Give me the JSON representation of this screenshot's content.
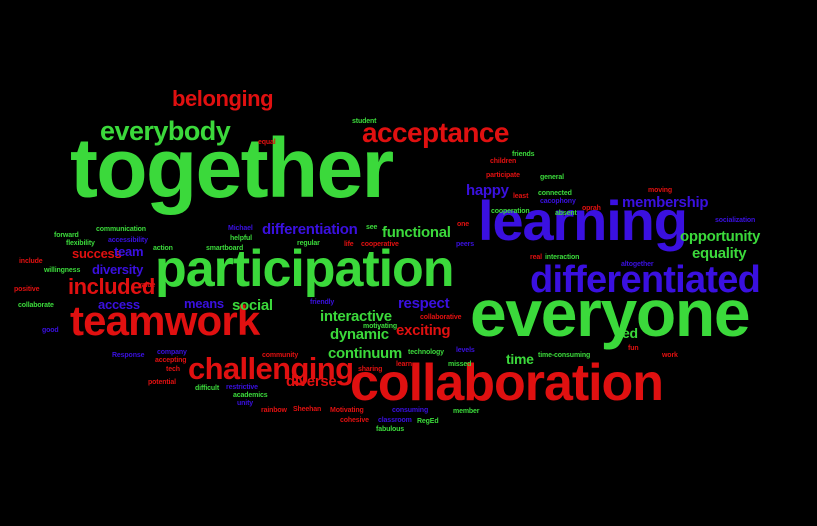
{
  "colors": {
    "background": "#000000",
    "green": "#3bd93b",
    "red": "#e01010",
    "blue": "#3a10e0"
  },
  "words": [
    {
      "text": "together",
      "color": "green"
    },
    {
      "text": "everyone",
      "color": "green"
    },
    {
      "text": "participation",
      "color": "green"
    },
    {
      "text": "collaboration",
      "color": "red"
    },
    {
      "text": "learning",
      "color": "blue"
    },
    {
      "text": "teamwork",
      "color": "red"
    },
    {
      "text": "differentiated",
      "color": "blue"
    },
    {
      "text": "acceptance",
      "color": "red"
    },
    {
      "text": "everybody",
      "color": "green"
    },
    {
      "text": "challenging",
      "color": "red"
    },
    {
      "text": "belonging",
      "color": "red"
    },
    {
      "text": "included",
      "color": "red"
    },
    {
      "text": "membership",
      "color": "blue"
    },
    {
      "text": "opportunity",
      "color": "green"
    },
    {
      "text": "equality",
      "color": "green"
    },
    {
      "text": "functional",
      "color": "green"
    },
    {
      "text": "differentiation",
      "color": "blue"
    },
    {
      "text": "interactive",
      "color": "green"
    },
    {
      "text": "dynamic",
      "color": "green"
    },
    {
      "text": "continuum",
      "color": "green"
    },
    {
      "text": "exciting",
      "color": "red"
    },
    {
      "text": "diverse",
      "color": "red"
    },
    {
      "text": "respect",
      "color": "blue"
    },
    {
      "text": "happy",
      "color": "blue"
    },
    {
      "text": "social",
      "color": "green"
    },
    {
      "text": "means",
      "color": "blue"
    },
    {
      "text": "success",
      "color": "red"
    },
    {
      "text": "diversity",
      "color": "blue"
    },
    {
      "text": "team",
      "color": "blue"
    },
    {
      "text": "access",
      "color": "blue"
    },
    {
      "text": "time",
      "color": "green"
    },
    {
      "text": "ed",
      "color": "green"
    },
    {
      "text": "student",
      "color": "green"
    },
    {
      "text": "equal",
      "color": "red"
    },
    {
      "text": "one",
      "color": "red"
    },
    {
      "text": "see",
      "color": "green"
    },
    {
      "text": "children",
      "color": "red"
    },
    {
      "text": "friends",
      "color": "green"
    },
    {
      "text": "participate",
      "color": "red"
    },
    {
      "text": "general",
      "color": "green"
    },
    {
      "text": "least",
      "color": "red"
    },
    {
      "text": "connected",
      "color": "green"
    },
    {
      "text": "cacophony",
      "color": "blue"
    },
    {
      "text": "oprah",
      "color": "red"
    },
    {
      "text": "moving",
      "color": "red"
    },
    {
      "text": "cooperation",
      "color": "green"
    },
    {
      "text": "absent",
      "color": "green"
    },
    {
      "text": "socialization",
      "color": "blue"
    },
    {
      "text": "communication",
      "color": "green"
    },
    {
      "text": "forward",
      "color": "green"
    },
    {
      "text": "flexibility",
      "color": "green"
    },
    {
      "text": "accessibility",
      "color": "blue"
    },
    {
      "text": "action",
      "color": "green"
    },
    {
      "text": "Michael",
      "color": "blue"
    },
    {
      "text": "helpful",
      "color": "green"
    },
    {
      "text": "smartboard",
      "color": "green"
    },
    {
      "text": "regular",
      "color": "green"
    },
    {
      "text": "life",
      "color": "red"
    },
    {
      "text": "cooperative",
      "color": "red"
    },
    {
      "text": "peers",
      "color": "blue"
    },
    {
      "text": "real",
      "color": "red"
    },
    {
      "text": "interaction",
      "color": "green"
    },
    {
      "text": "altogether",
      "color": "blue"
    },
    {
      "text": "include",
      "color": "red"
    },
    {
      "text": "willingness",
      "color": "green"
    },
    {
      "text": "positive",
      "color": "red"
    },
    {
      "text": "value",
      "color": "red"
    },
    {
      "text": "collaborate",
      "color": "green"
    },
    {
      "text": "friendly",
      "color": "blue"
    },
    {
      "text": "motivating",
      "color": "green"
    },
    {
      "text": "collaborative",
      "color": "red"
    },
    {
      "text": "good",
      "color": "blue"
    },
    {
      "text": "Response",
      "color": "blue"
    },
    {
      "text": "company",
      "color": "blue"
    },
    {
      "text": "accepting",
      "color": "red"
    },
    {
      "text": "tech",
      "color": "red"
    },
    {
      "text": "potential",
      "color": "red"
    },
    {
      "text": "community",
      "color": "red"
    },
    {
      "text": "sharing",
      "color": "red"
    },
    {
      "text": "technology",
      "color": "green"
    },
    {
      "text": "learn",
      "color": "red"
    },
    {
      "text": "missed",
      "color": "green"
    },
    {
      "text": "levels",
      "color": "blue"
    },
    {
      "text": "time-consuming",
      "color": "green"
    },
    {
      "text": "fun",
      "color": "red"
    },
    {
      "text": "work",
      "color": "red"
    },
    {
      "text": "difficult",
      "color": "green"
    },
    {
      "text": "restrictive",
      "color": "blue"
    },
    {
      "text": "academics",
      "color": "green"
    },
    {
      "text": "unity",
      "color": "blue"
    },
    {
      "text": "rainbow",
      "color": "red"
    },
    {
      "text": "Sheehan",
      "color": "red"
    },
    {
      "text": "Motivating",
      "color": "red"
    },
    {
      "text": "consuming",
      "color": "blue"
    },
    {
      "text": "member",
      "color": "green"
    },
    {
      "text": "cohesive",
      "color": "red"
    },
    {
      "text": "classroom",
      "color": "blue"
    },
    {
      "text": "fabulous",
      "color": "green"
    },
    {
      "text": "RegEd",
      "color": "green"
    }
  ]
}
